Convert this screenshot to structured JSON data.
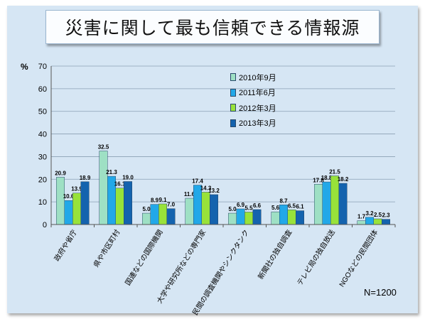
{
  "title": "災害に関して最も信頼できる情報源",
  "chart_data": {
    "type": "bar",
    "ylabel": "%",
    "ylim": [
      0,
      70
    ],
    "yticks": [
      0,
      10,
      20,
      30,
      40,
      50,
      60,
      70
    ],
    "grid": true,
    "legend_position": "top-right",
    "categories": [
      "政府や省庁",
      "県や市区町村",
      "国連などの国際機関",
      "大学や研究所などの専門家",
      "民間の調査機関やシンクタンク",
      "新聞社の独自調査",
      "テレビ局の独自放送",
      "NGOなどの民間団体"
    ],
    "series": [
      {
        "name": "2010年9月",
        "color": "#9ee0c4",
        "values": [
          20.9,
          32.5,
          5.0,
          11.6,
          5.0,
          5.6,
          17.8,
          1.7
        ]
      },
      {
        "name": "2011年6月",
        "color": "#22a8e8",
        "values": [
          10.6,
          21.3,
          8.9,
          17.4,
          6.9,
          8.7,
          18.8,
          3.2
        ]
      },
      {
        "name": "2012年3月",
        "color": "#98e23a",
        "values": [
          13.9,
          16.1,
          9.1,
          14.3,
          5.5,
          6.5,
          21.5,
          2.5
        ]
      },
      {
        "name": "2013年3月",
        "color": "#1463ae",
        "values": [
          18.9,
          19.0,
          7.0,
          13.2,
          6.6,
          6.1,
          18.2,
          2.3
        ]
      }
    ],
    "annotation": "N=1200"
  }
}
